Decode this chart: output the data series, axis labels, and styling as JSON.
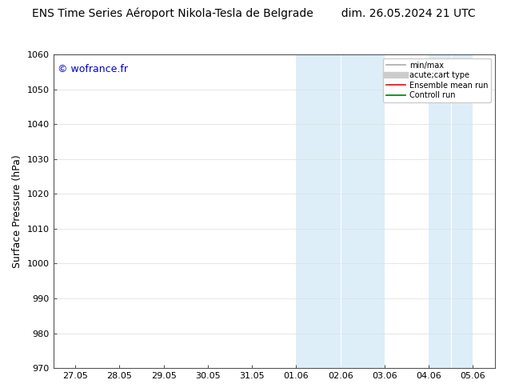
{
  "title_left": "ENS Time Series Aéroport Nikola-Tesla de Belgrade",
  "title_right": "dim. 26.05.2024 21 UTC",
  "ylabel": "Surface Pressure (hPa)",
  "ylim": [
    970,
    1060
  ],
  "yticks": [
    970,
    980,
    990,
    1000,
    1010,
    1020,
    1030,
    1040,
    1050,
    1060
  ],
  "xtick_labels": [
    "27.05",
    "28.05",
    "29.05",
    "30.05",
    "31.05",
    "01.06",
    "02.06",
    "03.06",
    "04.06",
    "05.06"
  ],
  "watermark": "© wofrance.fr",
  "watermark_color": "#0000cc",
  "bg_color": "#ffffff",
  "plot_bg_color": "#ffffff",
  "shaded_regions": [
    {
      "xstart": 5.0,
      "xend": 5.5,
      "color": "#ddeef8"
    },
    {
      "xstart": 5.5,
      "xend": 7.0,
      "color": "#ddeef8"
    },
    {
      "xstart": 8.0,
      "xend": 8.5,
      "color": "#ddeef8"
    },
    {
      "xstart": 8.5,
      "xend": 9.0,
      "color": "#ddeef8"
    }
  ],
  "legend_entries": [
    {
      "label": "min/max",
      "color": "#aaaaaa",
      "lw": 1.2
    },
    {
      "label": "acute;cart type",
      "color": "#cccccc",
      "lw": 6
    },
    {
      "label": "Ensemble mean run",
      "color": "#ff0000",
      "lw": 1.2
    },
    {
      "label": "Controll run",
      "color": "#007700",
      "lw": 1.2
    }
  ],
  "title_fontsize": 10,
  "tick_fontsize": 8,
  "ylabel_fontsize": 9,
  "watermark_fontsize": 9,
  "legend_fontsize": 7
}
